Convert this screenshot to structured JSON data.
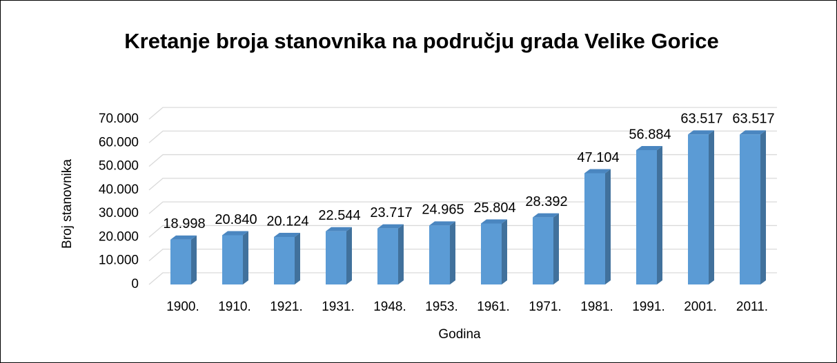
{
  "chart_data": {
    "type": "bar3d",
    "title": "Kretanje broja stanovnika na području grada Velike Gorice",
    "x_label": "Godina",
    "y_label": "Broj stanovnika",
    "categories": [
      "1900.",
      "1910.",
      "1921.",
      "1931.",
      "1948.",
      "1953.",
      "1961.",
      "1971.",
      "1981.",
      "1991.",
      "2001.",
      "2011."
    ],
    "values": [
      18998,
      20840,
      20124,
      22544,
      23717,
      24965,
      25804,
      28392,
      47104,
      56884,
      63517,
      63517
    ],
    "value_labels": [
      "18.998",
      "20.840",
      "20.124",
      "22.544",
      "23.717",
      "24.965",
      "25.804",
      "28.392",
      "47.104",
      "56.884",
      "63.517",
      "63.517"
    ],
    "color": "#5b9bd5",
    "ylim": [
      0,
      70000
    ],
    "yticks": [
      0,
      {
        "value": 10000,
        "label": "10.000"
      },
      {
        "value": 20000,
        "label": "20.000"
      },
      {
        "value": 30000,
        "label": "30.000"
      },
      {
        "value": 40000,
        "label": "40.000"
      },
      {
        "value": 50000,
        "label": "50.000"
      },
      {
        "value": 60000,
        "label": "60.000"
      },
      {
        "value": 70000,
        "label": "70.000"
      }
    ],
    "grid": true
  }
}
